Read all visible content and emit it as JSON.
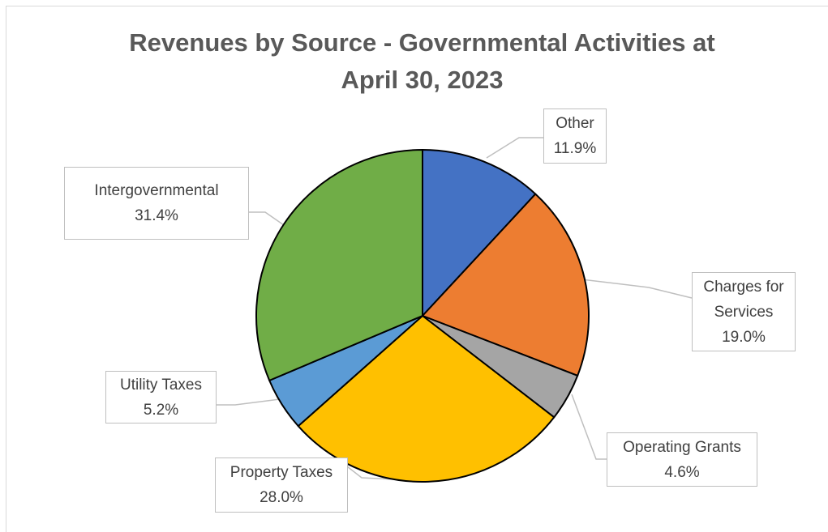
{
  "chart_data": {
    "type": "pie",
    "title": "Revenues by Source - Governmental Activities at April 30, 2023",
    "title_lines": [
      "Revenues by Source - Governmental Activities at",
      "April 30, 2023"
    ],
    "slices": [
      {
        "name": "Other",
        "value": 11.9,
        "label": "11.9%",
        "color": "#4472c4"
      },
      {
        "name": "Charges for Services",
        "value": 19.0,
        "label": "19.0%",
        "color": "#ed7d31"
      },
      {
        "name": "Operating Grants",
        "value": 4.6,
        "label": "4.6%",
        "color": "#a5a5a5"
      },
      {
        "name": "Property Taxes",
        "value": 28.0,
        "label": "28.0%",
        "color": "#ffc000"
      },
      {
        "name": "Utility Taxes",
        "value": 5.2,
        "label": "5.2%",
        "color": "#5b9bd5"
      },
      {
        "name": "Intergovernmental",
        "value": 31.4,
        "label": "31.4%",
        "color": "#70ad47"
      }
    ],
    "label_lines": [
      [
        "Other",
        "11.9%"
      ],
      [
        "Charges for",
        "Services",
        "19.0%"
      ],
      [
        "Operating Grants",
        "4.6%"
      ],
      [
        "Property Taxes",
        "28.0%"
      ],
      [
        "Utility Taxes",
        "5.2%"
      ],
      [
        "Intergovernmental",
        "31.4%"
      ]
    ],
    "start_angle": "12 o'clock",
    "direction": "clockwise",
    "legend": "none",
    "data_labels": "callouts"
  }
}
